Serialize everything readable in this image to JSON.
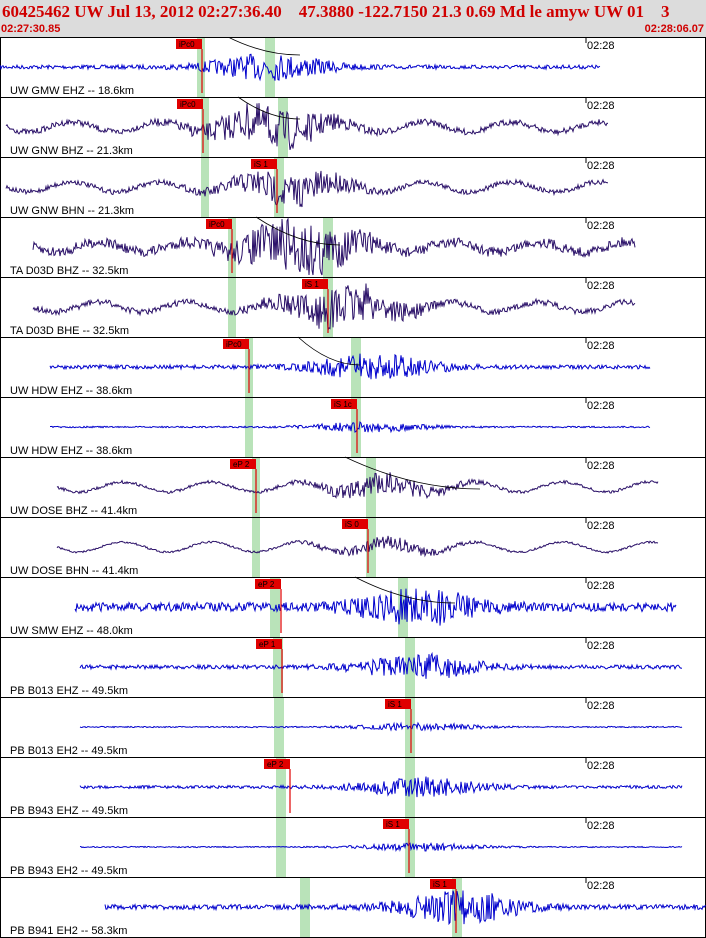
{
  "header": {
    "title": "60425462 UW Jul 13, 2012 02:27:36.40    47.3880 -122.7150 21.3 0.69 Md le amyw UW 01    3",
    "start_time": "02:27:30.85",
    "end_time": "02:28:06.07"
  },
  "colors": {
    "header_bg": "#dcdcdc",
    "header_text": "#d00000",
    "trace_blue": "#0000cc",
    "trace_purple": "#2a1068",
    "pick": "#e00000",
    "window": "#b9e3b9"
  },
  "traces": [
    {
      "label": "UW GMW EHZ -- 18.6km",
      "time": "02:28",
      "pick": "iPc0",
      "color": "blue",
      "x0": 0,
      "x1": 600,
      "amp": 4,
      "burst": 1.0
    },
    {
      "label": "UW GNW BHZ -- 21.3km",
      "time": "02:28",
      "pick": "iPc0",
      "color": "purple",
      "x0": 6,
      "x1": 608,
      "amp": 6,
      "burst": 1.0
    },
    {
      "label": "UW GNW BHN -- 21.3km",
      "time": "02:28",
      "pick": "iS 1",
      "color": "purple",
      "x0": 6,
      "x1": 608,
      "amp": 5,
      "burst": 1.0
    },
    {
      "label": "TA D03D BHZ -- 32.5km",
      "time": "02:28",
      "pick": "iPc0",
      "color": "purple",
      "x0": 33,
      "x1": 635,
      "amp": 10,
      "burst": 0.8
    },
    {
      "label": "TA D03D BHE -- 32.5km",
      "time": "02:28",
      "pick": "iS 1",
      "color": "purple",
      "x0": 33,
      "x1": 635,
      "amp": 6,
      "burst": 1.0
    },
    {
      "label": "UW HDW EHZ -- 38.6km",
      "time": "02:28",
      "pick": "iPc0",
      "color": "blue",
      "x0": 50,
      "x1": 650,
      "amp": 4,
      "burst": 1.0
    },
    {
      "label": "UW HDW EHZ -- 38.6km",
      "time": "02:28",
      "pick": "iS 1c",
      "color": "blue",
      "x0": 50,
      "x1": 650,
      "amp": 1.5,
      "burst": 1.0
    },
    {
      "label": "UW DOSE BHZ -- 41.4km",
      "time": "02:28",
      "pick": "eP 2",
      "color": "purple",
      "x0": 57,
      "x1": 658,
      "amp": 3,
      "burst": 1.0
    },
    {
      "label": "UW DOSE BHN -- 41.4km",
      "time": "02:28",
      "pick": "iS 0",
      "color": "purple",
      "x0": 57,
      "x1": 658,
      "amp": 2,
      "burst": 1.0
    },
    {
      "label": "UW SMW EHZ -- 48.0km",
      "time": "02:28",
      "pick": "eP 2",
      "color": "blue",
      "x0": 75,
      "x1": 676,
      "amp": 9,
      "burst": 0.6
    },
    {
      "label": "PB B013 EHZ -- 49.5km",
      "time": "02:28",
      "pick": "eP 1",
      "color": "blue",
      "x0": 80,
      "x1": 682,
      "amp": 4,
      "burst": 1.0
    },
    {
      "label": "PB B013 EH2 -- 49.5km",
      "time": "02:28",
      "pick": "iS 1",
      "color": "blue",
      "x0": 80,
      "x1": 682,
      "amp": 1.2,
      "burst": 1.0
    },
    {
      "label": "PB B943 EHZ -- 49.5km",
      "time": "02:28",
      "pick": "eP 2",
      "color": "blue",
      "x0": 80,
      "x1": 682,
      "amp": 3,
      "burst": 1.0
    },
    {
      "label": "PB B943 EH2 -- 49.5km",
      "time": "02:28",
      "pick": "iS 1",
      "color": "blue",
      "x0": 80,
      "x1": 682,
      "amp": 1.2,
      "burst": 1.0
    },
    {
      "label": "PB B941 EH2 -- 58.3km",
      "time": "02:28",
      "pick": "iS 1",
      "color": "blue",
      "x0": 105,
      "x1": 706,
      "amp": 5,
      "burst": 1.0
    }
  ]
}
